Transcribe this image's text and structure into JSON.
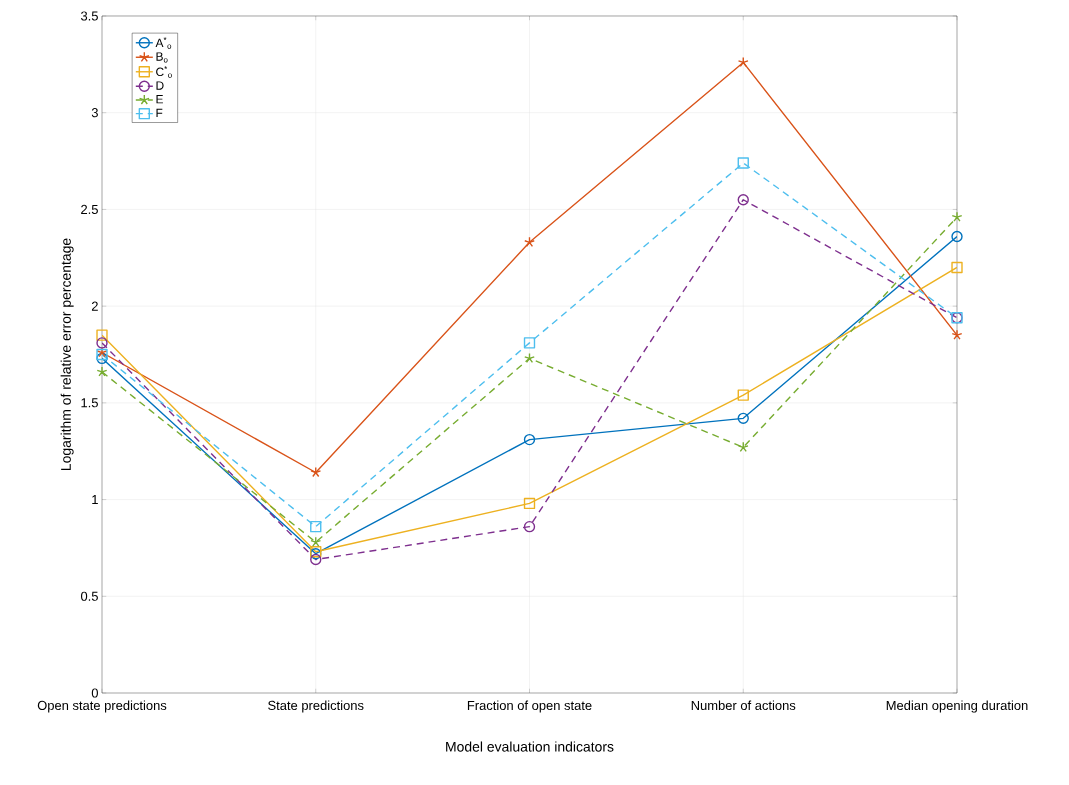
{
  "chart_data": {
    "type": "line",
    "xlabel": "Model evaluation indicators",
    "ylabel": "Logarithm of relative error percentage",
    "categories": [
      "Open state predictions",
      "State predictions",
      "Fraction of open state",
      "Number of actions",
      "Median opening duration"
    ],
    "series": [
      {
        "name": "A$^{*}$$_{o}$",
        "color": "#0072bd",
        "marker": "circle",
        "line_style": "solid",
        "values": [
          1.73,
          0.72,
          1.31,
          1.42,
          2.36
        ]
      },
      {
        "name": "B$_{o}$",
        "color": "#d95319",
        "marker": "cross",
        "line_style": "solid",
        "values": [
          1.76,
          1.14,
          2.33,
          3.26,
          1.85
        ]
      },
      {
        "name": "C$^{*}$$_{o}$",
        "color": "#edb120",
        "marker": "square",
        "line_style": "solid",
        "values": [
          1.85,
          0.73,
          0.98,
          1.54,
          2.2
        ]
      },
      {
        "name": "D",
        "color": "#7e2f8e",
        "marker": "circle",
        "line_style": "dashed",
        "values": [
          1.81,
          0.69,
          0.86,
          2.55,
          1.94
        ]
      },
      {
        "name": "E",
        "color": "#77ac30",
        "marker": "cross",
        "line_style": "dashed",
        "values": [
          1.66,
          0.78,
          1.73,
          1.27,
          2.46
        ]
      },
      {
        "name": "F",
        "color": "#4dbeee",
        "marker": "square",
        "line_style": "dashed",
        "values": [
          1.75,
          0.86,
          1.81,
          2.74,
          1.94
        ]
      }
    ],
    "ylim": [
      0,
      3.5
    ],
    "yticks": [
      0,
      0.5,
      1,
      1.5,
      2,
      2.5,
      3,
      3.5
    ],
    "grid": true,
    "legend": "top left"
  }
}
